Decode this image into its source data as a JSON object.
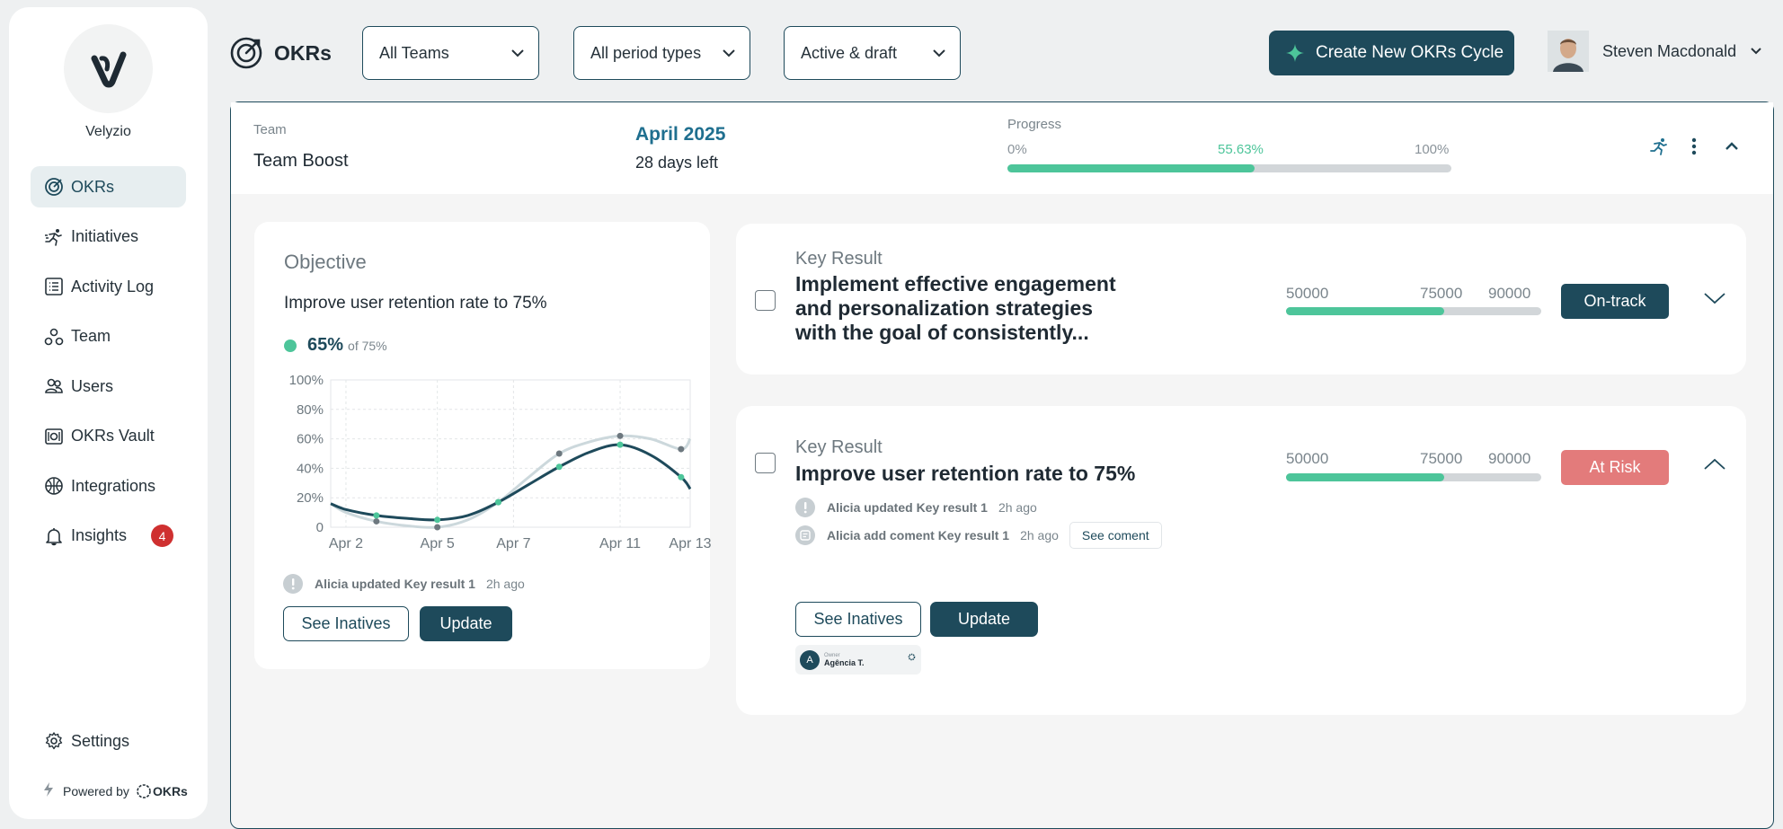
{
  "brand": {
    "name": "Velyzio"
  },
  "sidebar": {
    "items": [
      {
        "label": "OKRs",
        "icon": "okrs-target-icon",
        "active": true
      },
      {
        "label": "Initiatives",
        "icon": "running-person-icon"
      },
      {
        "label": "Activity Log",
        "icon": "list-icon"
      },
      {
        "label": "Team",
        "icon": "team-icon"
      },
      {
        "label": "Users",
        "icon": "users-icon"
      },
      {
        "label": "OKRs Vault",
        "icon": "vault-icon"
      },
      {
        "label": "Integrations",
        "icon": "globe-icon"
      },
      {
        "label": "Insights",
        "icon": "bell-icon",
        "badge": "4"
      }
    ],
    "settings_label": "Settings",
    "powered_by": "Powered by",
    "powered_brand": "OKRs"
  },
  "topbar": {
    "title": "OKRs",
    "filters": {
      "teams": "All Teams",
      "period_types": "All period types",
      "status": "Active & draft"
    },
    "create_button": "Create New OKRs Cycle",
    "user_name": "Steven Macdonald"
  },
  "team": {
    "label": "Team",
    "name": "Team Boost",
    "period": "April 2025",
    "days_left": "28 days left",
    "progress": {
      "label": "Progress",
      "min": "0%",
      "value_label": "55.63%",
      "max": "100%",
      "fraction": 0.5563
    }
  },
  "objective": {
    "heading": "Objective",
    "text": "Improve user retention rate to 75%",
    "percent": "65%",
    "of": "of 75%",
    "activity": {
      "text": "Alicia updated Key result 1",
      "time": "2h ago"
    },
    "see_button": "See Inatives",
    "update_button": "Update"
  },
  "chart_data": {
    "type": "line",
    "y_tick_labels": [
      "0",
      "20%",
      "40%",
      "60%",
      "80%",
      "100%"
    ],
    "ylim": [
      0,
      100
    ],
    "x_tick_labels": [
      "Apr 2",
      "Apr 5",
      "Apr 7",
      "Apr 11",
      "Apr 13"
    ],
    "xlim": [
      1.5,
      13.3
    ],
    "grid": true,
    "series": [
      {
        "color": "#1e4a5b",
        "x": [
          1.5,
          2,
          3,
          4,
          5,
          6,
          7,
          8,
          9,
          10,
          11,
          12,
          13,
          13.3
        ],
        "y": [
          16,
          12,
          8,
          6,
          5,
          8,
          17,
          29,
          41,
          51,
          56,
          49,
          34,
          26
        ]
      },
      {
        "color": "#ccd8dc",
        "x": [
          1.5,
          2,
          3,
          4,
          5,
          6,
          7,
          8,
          9,
          10,
          11,
          12,
          13,
          13.3
        ],
        "y": [
          16,
          10,
          4,
          1,
          0,
          5,
          17,
          34,
          50,
          58,
          62,
          60,
          53,
          60
        ]
      }
    ]
  },
  "key_results": [
    {
      "label": "Key Result",
      "title": "Implement effective engagement and personalization strategies with the goal of consistently...",
      "numbers": [
        "50000",
        "75000",
        "90000"
      ],
      "progress": 0.62,
      "status": "On-track",
      "status_color": "#1e4a5b"
    },
    {
      "label": "Key Result",
      "title": "Improve user retention rate to 75%",
      "numbers": [
        "50000",
        "75000",
        "90000"
      ],
      "progress": 0.62,
      "status": "At Risk",
      "status_color": "#e37b7b",
      "activities": [
        {
          "text": "Alicia updated Key result 1",
          "time": "2h ago"
        },
        {
          "text": "Alicia add coment Key result 1",
          "time": "2h ago",
          "action": "See coment"
        }
      ],
      "see_button": "See Inatives",
      "update_button": "Update",
      "owner": {
        "caption": "Owner",
        "name": "Agência T.",
        "initial": "A"
      }
    }
  ]
}
